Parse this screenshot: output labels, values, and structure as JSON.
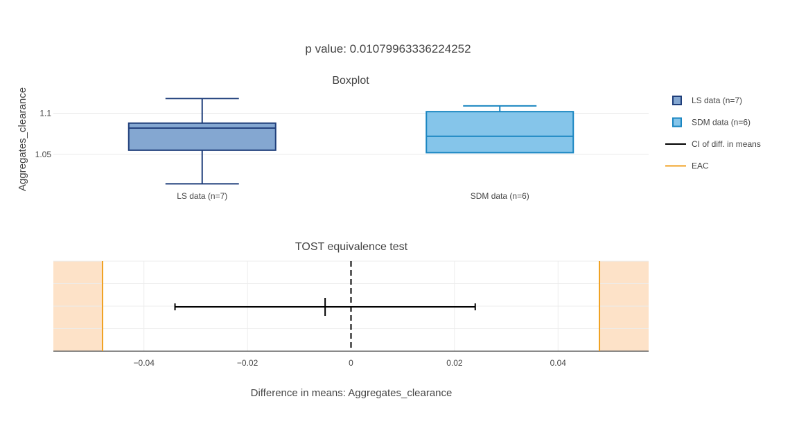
{
  "figure": {
    "title": "p value: 0.01079963336224252"
  },
  "chart_data": [
    {
      "type": "box",
      "title": "Boxplot",
      "ylabel": "Aggregates_clearance",
      "ylim": [
        1.0,
        1.13
      ],
      "yticks": [
        1.05,
        1.1
      ],
      "ytick_labels": [
        "1.05",
        "1.1"
      ],
      "grid": true,
      "categories": [
        "LS data (n=7)",
        "SDM data (n=6)"
      ],
      "series": [
        {
          "name": "LS data (n=7)",
          "min": 1.014,
          "q1": 1.055,
          "median": 1.082,
          "q3": 1.088,
          "max": 1.118,
          "fill": "#84a7d1",
          "stroke": "#1f3e7a"
        },
        {
          "name": "SDM data (n=6)",
          "min": 1.052,
          "q1": 1.052,
          "median": 1.072,
          "q3": 1.102,
          "max": 1.109,
          "fill": "#85c5ea",
          "stroke": "#1a86c1"
        }
      ]
    },
    {
      "type": "interval",
      "title": "TOST equivalence test",
      "xlabel": "Difference in means: Aggregates_clearance",
      "xlim": [
        -0.0575,
        0.0575
      ],
      "xticks": [
        -0.04,
        -0.02,
        0,
        0.02,
        0.04
      ],
      "xtick_labels": [
        "−0.04",
        "−0.02",
        "0",
        "0.02",
        "0.04"
      ],
      "grid": true,
      "ci": {
        "lower": -0.034,
        "estimate": -0.005,
        "upper": 0.024
      },
      "eac": {
        "lower": -0.048,
        "upper": 0.048
      },
      "reference_line": 0,
      "colors": {
        "ci": "#000000",
        "eac": "#f0a020",
        "outside_eac": "#fde2c8"
      }
    }
  ],
  "legend": {
    "position": "top-right",
    "items": [
      {
        "label": "LS data (n=7)",
        "kind": "box",
        "fill": "#84a7d1",
        "stroke": "#1f3e7a"
      },
      {
        "label": "SDM data (n=6)",
        "kind": "box",
        "fill": "#85c5ea",
        "stroke": "#1a86c1"
      },
      {
        "label": "CI of diff. in means",
        "kind": "line",
        "stroke": "#000000"
      },
      {
        "label": "EAC",
        "kind": "line",
        "stroke": "#f0a020"
      }
    ]
  }
}
